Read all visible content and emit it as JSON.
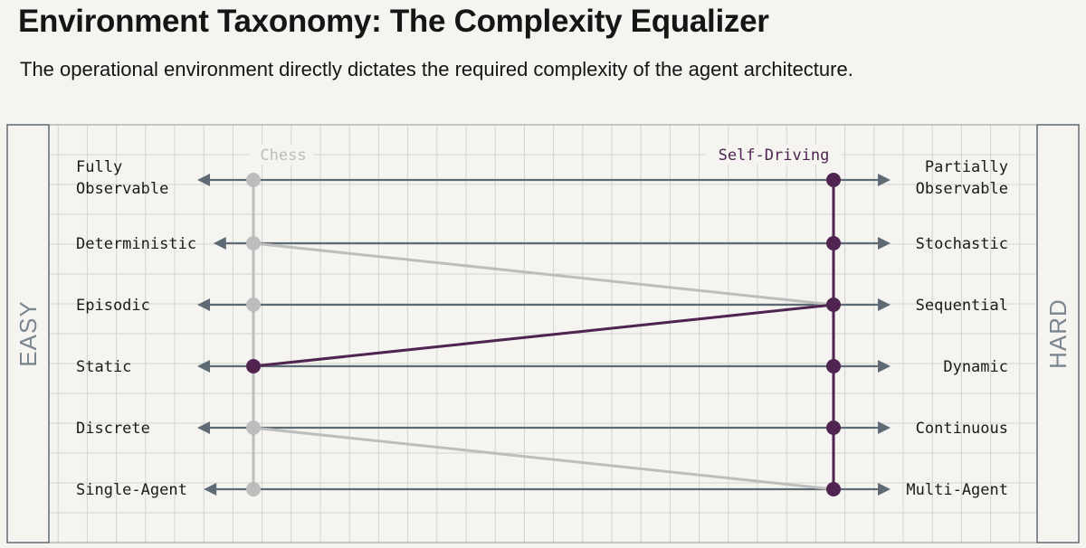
{
  "header": {
    "title": "Environment Taxonomy: The Complexity Equalizer",
    "subtitle": "The operational environment directly dictates the required complexity of the agent architecture."
  },
  "side_labels": {
    "left": "EASY",
    "right": "HARD"
  },
  "series_labels": {
    "chess": "Chess",
    "self_driving": "Self-Driving"
  },
  "dimensions": [
    {
      "easy": [
        "Fully",
        "Observable"
      ],
      "hard": [
        "Partially",
        "Observable"
      ],
      "chess": "easy"
    },
    {
      "easy": [
        "Deterministic"
      ],
      "hard": [
        "Stochastic"
      ],
      "chess": "easy"
    },
    {
      "easy": [
        "Episodic"
      ],
      "hard": [
        "Sequential"
      ],
      "chess": "hard"
    },
    {
      "easy": [
        "Static"
      ],
      "hard": [
        "Dynamic"
      ],
      "chess": "easy"
    },
    {
      "easy": [
        "Discrete"
      ],
      "hard": [
        "Continuous"
      ],
      "chess": "easy"
    },
    {
      "easy": [
        "Single-Agent"
      ],
      "hard": [
        "Multi-Agent"
      ],
      "chess": "hard"
    }
  ],
  "colors": {
    "background": "#f5f4f0",
    "grid": "#d3d3d1",
    "axis": "#5e6b75",
    "chess": "#bdbdbd",
    "self_driving": "#4f2451",
    "text": "#1a1a1a",
    "side_label": "#7b8690"
  }
}
